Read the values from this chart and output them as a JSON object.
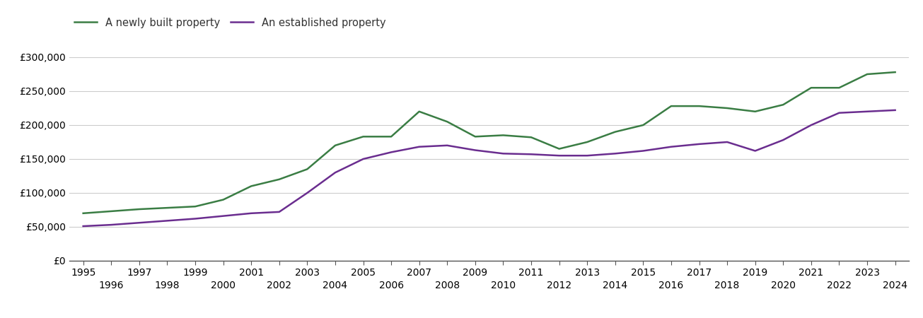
{
  "newly_built": {
    "years": [
      1995,
      1996,
      1997,
      1998,
      1999,
      2000,
      2001,
      2002,
      2003,
      2004,
      2005,
      2006,
      2007,
      2008,
      2009,
      2010,
      2011,
      2012,
      2013,
      2014,
      2015,
      2016,
      2017,
      2018,
      2019,
      2020,
      2021,
      2022,
      2023,
      2024
    ],
    "values": [
      70000,
      73000,
      76000,
      78000,
      80000,
      90000,
      110000,
      120000,
      135000,
      170000,
      183000,
      183000,
      220000,
      205000,
      183000,
      185000,
      182000,
      165000,
      175000,
      190000,
      200000,
      228000,
      228000,
      225000,
      220000,
      230000,
      255000,
      255000,
      275000,
      278000
    ]
  },
  "established": {
    "years": [
      1995,
      1996,
      1997,
      1998,
      1999,
      2000,
      2001,
      2002,
      2003,
      2004,
      2005,
      2006,
      2007,
      2008,
      2009,
      2010,
      2011,
      2012,
      2013,
      2014,
      2015,
      2016,
      2017,
      2018,
      2019,
      2020,
      2021,
      2022,
      2023,
      2024
    ],
    "values": [
      51000,
      53000,
      56000,
      59000,
      62000,
      66000,
      70000,
      72000,
      100000,
      130000,
      150000,
      160000,
      168000,
      170000,
      163000,
      158000,
      157000,
      155000,
      155000,
      158000,
      162000,
      168000,
      172000,
      175000,
      162000,
      178000,
      200000,
      218000,
      220000,
      222000
    ]
  },
  "newly_built_color": "#3a7d44",
  "established_color": "#6a2d8f",
  "newly_built_label": "A newly built property",
  "established_label": "An established property",
  "ylim": [
    0,
    300000
  ],
  "yticks": [
    0,
    50000,
    100000,
    150000,
    200000,
    250000,
    300000
  ],
  "ytick_labels": [
    "£0",
    "£50,000",
    "£100,000",
    "£150,000",
    "£200,000",
    "£250,000",
    "£300,000"
  ],
  "background_color": "#ffffff",
  "grid_color": "#cccccc",
  "line_width": 1.8,
  "legend_fontsize": 10.5,
  "tick_fontsize": 10.0
}
